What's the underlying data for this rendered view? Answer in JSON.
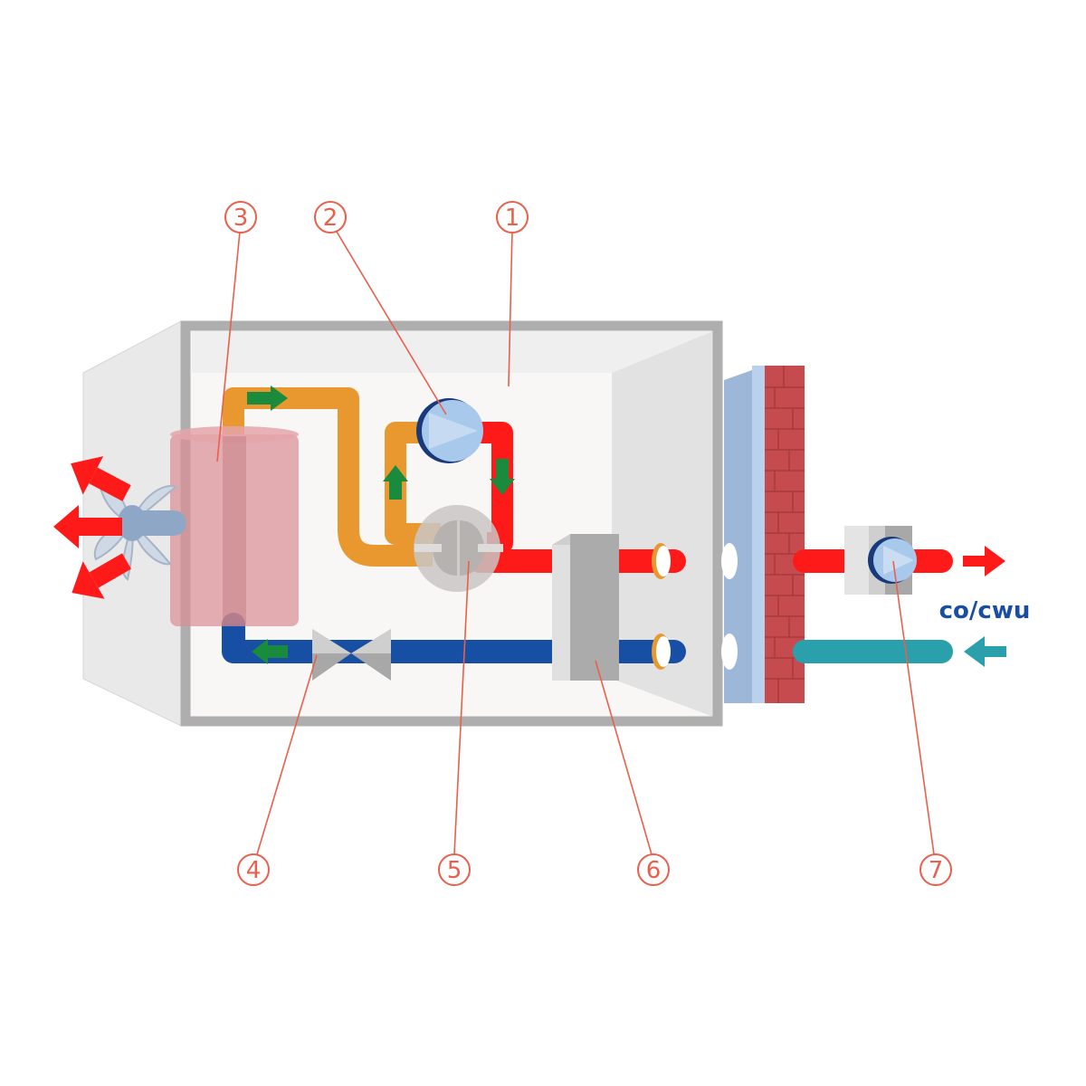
{
  "colors": {
    "hot": "#ff1a1a",
    "cold": "#164fa3",
    "gas": "#e8982f",
    "return": "#29a0ab",
    "flow_arrow": "#1a8a3c",
    "callout": "#e8604c",
    "label": "#1a4ea3",
    "wall": "#bd4a4a"
  },
  "callouts": [
    {
      "id": "1",
      "label": "1"
    },
    {
      "id": "2",
      "label": "2"
    },
    {
      "id": "3",
      "label": "3"
    },
    {
      "id": "4",
      "label": "4"
    },
    {
      "id": "5",
      "label": "5"
    },
    {
      "id": "6",
      "label": "6"
    },
    {
      "id": "7",
      "label": "7"
    }
  ],
  "labels": {
    "co_cwu": "co/cwu"
  },
  "icons": {
    "fan": "fan-icon",
    "compressor": "compressor-icon",
    "pump": "circulation-pump-icon",
    "valve": "expansion-valve-icon"
  }
}
